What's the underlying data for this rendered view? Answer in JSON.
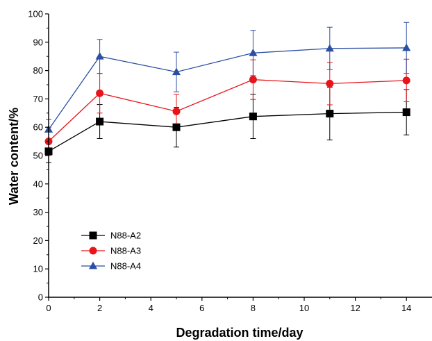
{
  "chart_data": {
    "type": "line",
    "title": "",
    "xlabel": "Degradation time/day",
    "ylabel": "Water content/%",
    "xlim": [
      0,
      15
    ],
    "ylim": [
      0,
      100
    ],
    "xticks": [
      0,
      2,
      4,
      6,
      8,
      10,
      12,
      14
    ],
    "yticks": [
      0,
      10,
      20,
      30,
      40,
      50,
      60,
      70,
      80,
      90,
      100
    ],
    "grid": false,
    "legend_position": "lower-left",
    "x": [
      0,
      2,
      5,
      8,
      11,
      14
    ],
    "series": [
      {
        "name": "N88-A2",
        "color": "#000000",
        "marker": "square",
        "values": [
          51.5,
          62,
          60,
          63.8,
          64.8,
          65.3
        ],
        "errors": [
          4,
          6,
          7,
          7.8,
          9.3,
          8
        ]
      },
      {
        "name": "N88-A3",
        "color": "#e8141a",
        "marker": "circle",
        "values": [
          55,
          72,
          65.6,
          76.8,
          75.4,
          76.5
        ],
        "errors": [
          5,
          7,
          6,
          7,
          7.5,
          7.5
        ]
      },
      {
        "name": "N88-A4",
        "color": "#2b4fa2",
        "marker": "triangle",
        "values": [
          59.2,
          85,
          79.5,
          86.2,
          87.8,
          88
        ],
        "errors": [
          3.5,
          6,
          7,
          8,
          7.5,
          9
        ]
      }
    ]
  }
}
